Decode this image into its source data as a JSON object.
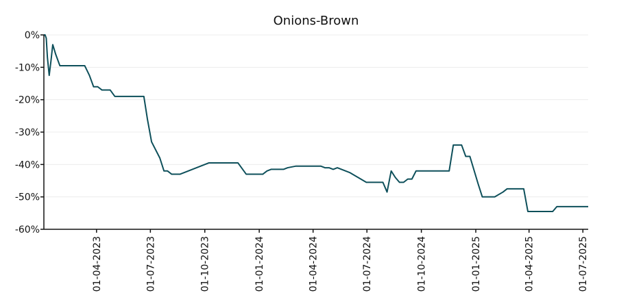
{
  "chart_data": {
    "type": "line",
    "title": "Onions-Brown",
    "xlabel": "",
    "ylabel": "",
    "grid": "horizontal",
    "ylim": [
      -60,
      0
    ],
    "xlim": [
      "2023-01-02",
      "2025-07-10"
    ],
    "y_ticks": [
      0,
      -10,
      -20,
      -30,
      -40,
      -50,
      -60
    ],
    "y_tick_labels": [
      "0%",
      "-10%",
      "-20%",
      "-30%",
      "-40%",
      "-50%",
      "-60%"
    ],
    "x_ticks": [
      "2023-04-01",
      "2023-07-01",
      "2023-10-01",
      "2024-01-01",
      "2024-04-01",
      "2024-07-01",
      "2024-10-01",
      "2025-01-01",
      "2025-04-01",
      "2025-07-01"
    ],
    "x_tick_labels": [
      "01-04-2023",
      "01-07-2023",
      "01-10-2023",
      "01-01-2024",
      "01-04-2024",
      "01-07-2024",
      "01-10-2024",
      "01-01-2025",
      "01-04-2025",
      "01-07-2025"
    ],
    "line_color": "#0d4f5a",
    "series": [
      {
        "points": [
          [
            "2023-01-02",
            0
          ],
          [
            "2023-01-04",
            0
          ],
          [
            "2023-01-06",
            -1
          ],
          [
            "2023-01-08",
            -7
          ],
          [
            "2023-01-11",
            -12.5
          ],
          [
            "2023-01-14",
            -8
          ],
          [
            "2023-01-17",
            -3
          ],
          [
            "2023-01-22",
            -6
          ],
          [
            "2023-01-29",
            -9.5
          ],
          [
            "2023-02-05",
            -9.5
          ],
          [
            "2023-02-26",
            -9.5
          ],
          [
            "2023-03-08",
            -9.5
          ],
          [
            "2023-03-12",
            -9.5
          ],
          [
            "2023-03-20",
            -12.5
          ],
          [
            "2023-03-27",
            -16
          ],
          [
            "2023-04-03",
            -16
          ],
          [
            "2023-04-10",
            -17
          ],
          [
            "2023-04-24",
            -17
          ],
          [
            "2023-05-02",
            -19
          ],
          [
            "2023-05-15",
            -19
          ],
          [
            "2023-06-01",
            -19
          ],
          [
            "2023-06-20",
            -19
          ],
          [
            "2023-06-26",
            -26
          ],
          [
            "2023-07-03",
            -33
          ],
          [
            "2023-07-17",
            -38
          ],
          [
            "2023-07-24",
            -42
          ],
          [
            "2023-07-30",
            -42
          ],
          [
            "2023-08-06",
            -43
          ],
          [
            "2023-08-13",
            -43
          ],
          [
            "2023-08-20",
            -43
          ],
          [
            "2023-08-27",
            -42.5
          ],
          [
            "2023-09-03",
            -42
          ],
          [
            "2023-09-10",
            -41.5
          ],
          [
            "2023-09-17",
            -41
          ],
          [
            "2023-09-24",
            -40.5
          ],
          [
            "2023-10-08",
            -39.5
          ],
          [
            "2023-10-22",
            -39.5
          ],
          [
            "2023-11-05",
            -39.5
          ],
          [
            "2023-11-19",
            -39.5
          ],
          [
            "2023-11-26",
            -39.5
          ],
          [
            "2023-12-10",
            -43
          ],
          [
            "2023-12-24",
            -43
          ],
          [
            "2024-01-07",
            -43
          ],
          [
            "2024-01-14",
            -42
          ],
          [
            "2024-01-21",
            -41.5
          ],
          [
            "2024-02-04",
            -41.5
          ],
          [
            "2024-02-11",
            -41.5
          ],
          [
            "2024-02-18",
            -41
          ],
          [
            "2024-03-03",
            -40.5
          ],
          [
            "2024-03-17",
            -40.5
          ],
          [
            "2024-04-07",
            -40.5
          ],
          [
            "2024-04-14",
            -40.5
          ],
          [
            "2024-04-21",
            -41
          ],
          [
            "2024-04-28",
            -41
          ],
          [
            "2024-05-05",
            -41.5
          ],
          [
            "2024-05-12",
            -41
          ],
          [
            "2024-05-19",
            -41.5
          ],
          [
            "2024-06-02",
            -42.5
          ],
          [
            "2024-06-16",
            -44
          ],
          [
            "2024-06-30",
            -45.5
          ],
          [
            "2024-07-14",
            -45.5
          ],
          [
            "2024-07-28",
            -45.5
          ],
          [
            "2024-08-04",
            -48.5
          ],
          [
            "2024-08-11",
            -42
          ],
          [
            "2024-08-18",
            -44
          ],
          [
            "2024-08-25",
            -45.5
          ],
          [
            "2024-09-01",
            -45.5
          ],
          [
            "2024-09-08",
            -44.5
          ],
          [
            "2024-09-15",
            -44.5
          ],
          [
            "2024-09-22",
            -42
          ],
          [
            "2024-10-06",
            -42
          ],
          [
            "2024-10-20",
            -42
          ],
          [
            "2024-11-03",
            -42
          ],
          [
            "2024-11-17",
            -42
          ],
          [
            "2024-11-24",
            -34
          ],
          [
            "2024-12-01",
            -34
          ],
          [
            "2024-12-08",
            -34
          ],
          [
            "2024-12-15",
            -37.5
          ],
          [
            "2024-12-22",
            -37.5
          ],
          [
            "2025-01-05",
            -46
          ],
          [
            "2025-01-12",
            -50
          ],
          [
            "2025-01-26",
            -50
          ],
          [
            "2025-02-02",
            -50
          ],
          [
            "2025-02-16",
            -48.5
          ],
          [
            "2025-02-23",
            -47.5
          ],
          [
            "2025-03-09",
            -47.5
          ],
          [
            "2025-03-23",
            -47.5
          ],
          [
            "2025-03-30",
            -54.5
          ],
          [
            "2025-04-13",
            -54.5
          ],
          [
            "2025-04-27",
            -54.5
          ],
          [
            "2025-05-11",
            -54.5
          ],
          [
            "2025-05-18",
            -53
          ],
          [
            "2025-06-01",
            -53
          ],
          [
            "2025-06-15",
            -53
          ],
          [
            "2025-06-29",
            -53
          ],
          [
            "2025-07-10",
            -53
          ]
        ]
      }
    ]
  }
}
